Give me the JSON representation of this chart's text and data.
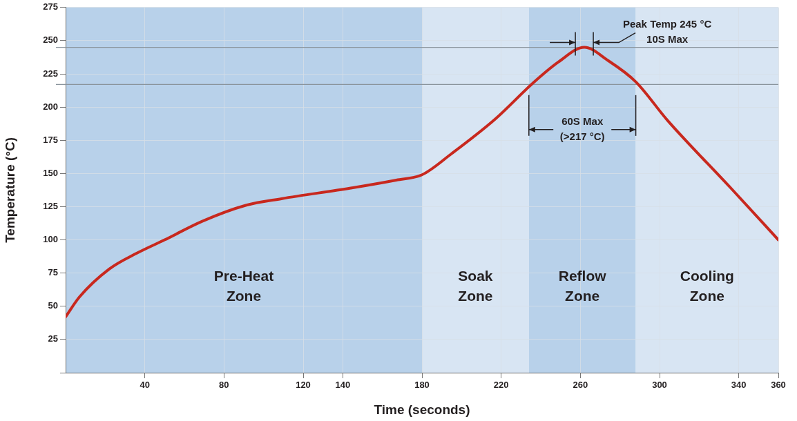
{
  "chart_data": {
    "type": "line",
    "xlabel": "Time (seconds)",
    "ylabel": "Temperature (°C)",
    "xlim": [
      0,
      360
    ],
    "ylim": [
      0,
      275
    ],
    "xticks": [
      40,
      80,
      120,
      140,
      180,
      220,
      260,
      300,
      340,
      360
    ],
    "yticks": [
      {
        "value": 0,
        "label": null
      },
      25,
      50,
      75,
      100,
      125,
      150,
      175,
      200,
      225,
      250,
      275
    ],
    "grid": true,
    "legend": false,
    "series": [
      {
        "color": "#c8281e",
        "x": [
          0,
          7,
          22,
          36,
          50,
          69,
          91,
          109,
          144,
          167,
          180,
          195,
          217,
          236,
          249,
          262,
          274,
          288,
          304,
          336,
          360
        ],
        "values": [
          42,
          57,
          78,
          90,
          100,
          114,
          126,
          131,
          139,
          145,
          149,
          165,
          191,
          218,
          234,
          245,
          235,
          219,
          190,
          139,
          100
        ]
      }
    ],
    "bands": [
      {
        "axis": "x",
        "from": 0,
        "to": 180,
        "label": "Pre-Heat Zone",
        "color": "#b8d1ea"
      },
      {
        "axis": "x",
        "from": 180,
        "to": 234,
        "label": "Soak Zone",
        "color": "#d8e5f3"
      },
      {
        "axis": "x",
        "from": 234,
        "to": 288,
        "label": "Reflow Zone",
        "color": "#b8d1ea"
      },
      {
        "axis": "x",
        "from": 288,
        "to": 360,
        "label": "Cooling Zone",
        "color": "#d8e5f3"
      }
    ],
    "ref_lines": [
      {
        "axis": "y",
        "value": 245,
        "color": "#8a949c"
      },
      {
        "axis": "y",
        "value": 217,
        "color": "#8a949c"
      }
    ],
    "annotations": [
      "Peak Temp 245 °C\n10S Max",
      {
        "text": "60S Max\n(>217 °C)",
        "x": 234,
        "y": 183
      }
    ]
  }
}
